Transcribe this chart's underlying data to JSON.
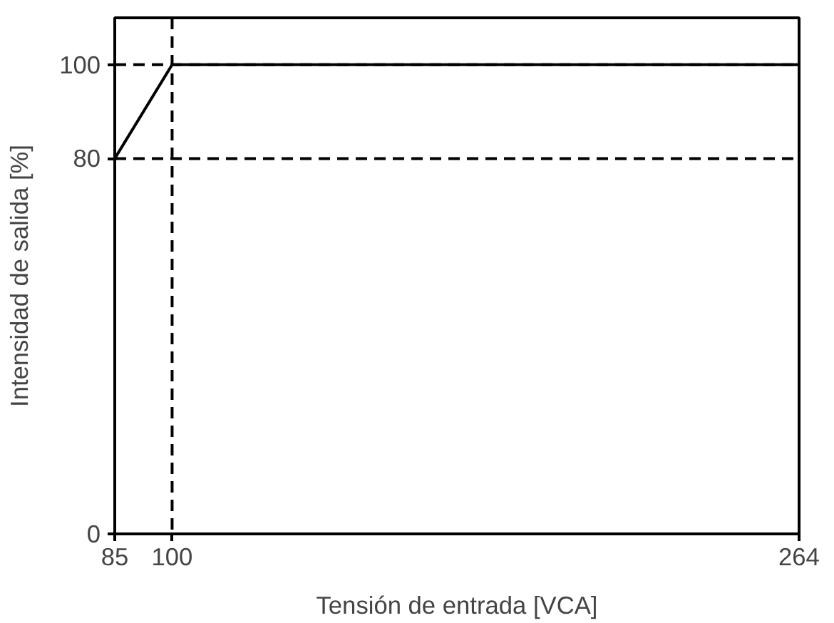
{
  "chart_data": {
    "type": "line",
    "xlabel": "Tensión de entrada [VCA]",
    "ylabel": "Intensidad de salida [%]",
    "x": [
      85,
      100,
      264
    ],
    "series": [
      {
        "color": "#000000",
        "values": [
          80,
          100,
          100
        ]
      }
    ],
    "xlim": [
      85,
      264
    ],
    "ylim": [
      0,
      110
    ],
    "xticks": [
      85,
      100,
      264
    ],
    "yticks": [
      0,
      80,
      100
    ],
    "ref_lines": [
      {
        "axis": "x",
        "value": 100,
        "color": "#000000",
        "line_style": "dashed"
      },
      {
        "axis": "y",
        "value": 100,
        "color": "#000000",
        "line_style": "dashed"
      },
      {
        "axis": "y",
        "value": 80,
        "color": "#000000",
        "line_style": "dashed"
      }
    ],
    "grid": false,
    "line_style": "solid",
    "marker": "none"
  }
}
